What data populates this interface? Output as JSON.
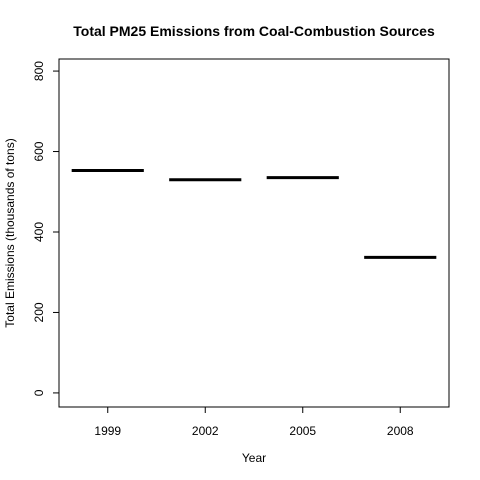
{
  "chart_data": {
    "type": "bar",
    "title": "Total PM25 Emissions from Coal-Combustion Sources",
    "xlabel": "Year",
    "ylabel": "Total Emissions (thousands of tons)",
    "categories": [
      "1999",
      "2002",
      "2005",
      "2008"
    ],
    "values": [
      553,
      530,
      535,
      337
    ],
    "ylim": [
      -35,
      830
    ],
    "yticks": [
      0,
      200,
      400,
      600,
      800
    ],
    "grid": false,
    "bar_color": "#000000"
  }
}
